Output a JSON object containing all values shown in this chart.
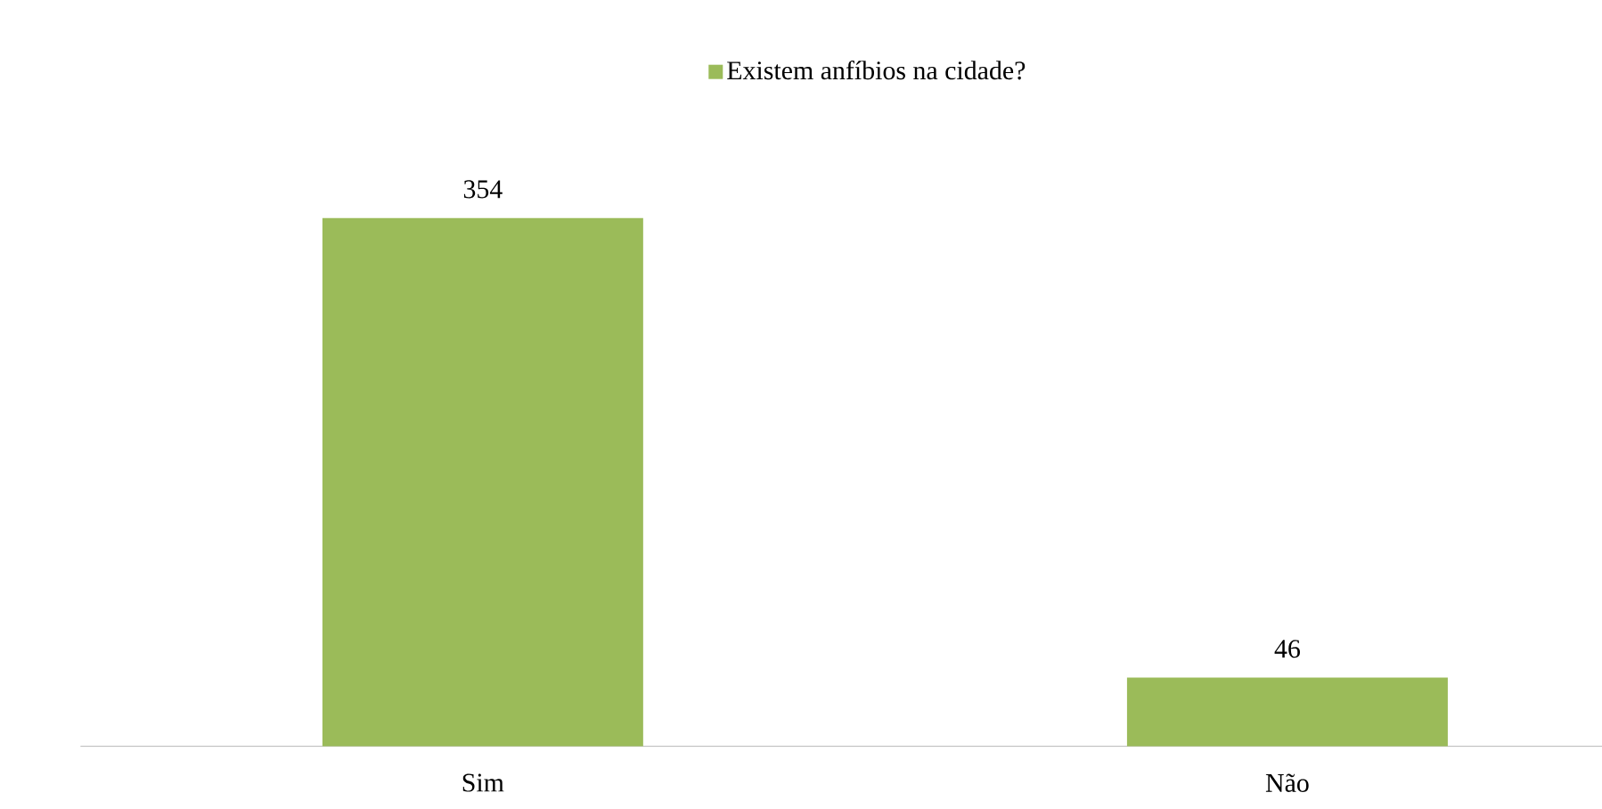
{
  "chart_data": {
    "type": "bar",
    "categories": [
      "Sim",
      "Não"
    ],
    "series": [
      {
        "name": "Existem anfíbios na cidade?",
        "color": "#9bbb59",
        "values": [
          354,
          46
        ]
      }
    ],
    "data_labels": true,
    "legend": "top"
  }
}
